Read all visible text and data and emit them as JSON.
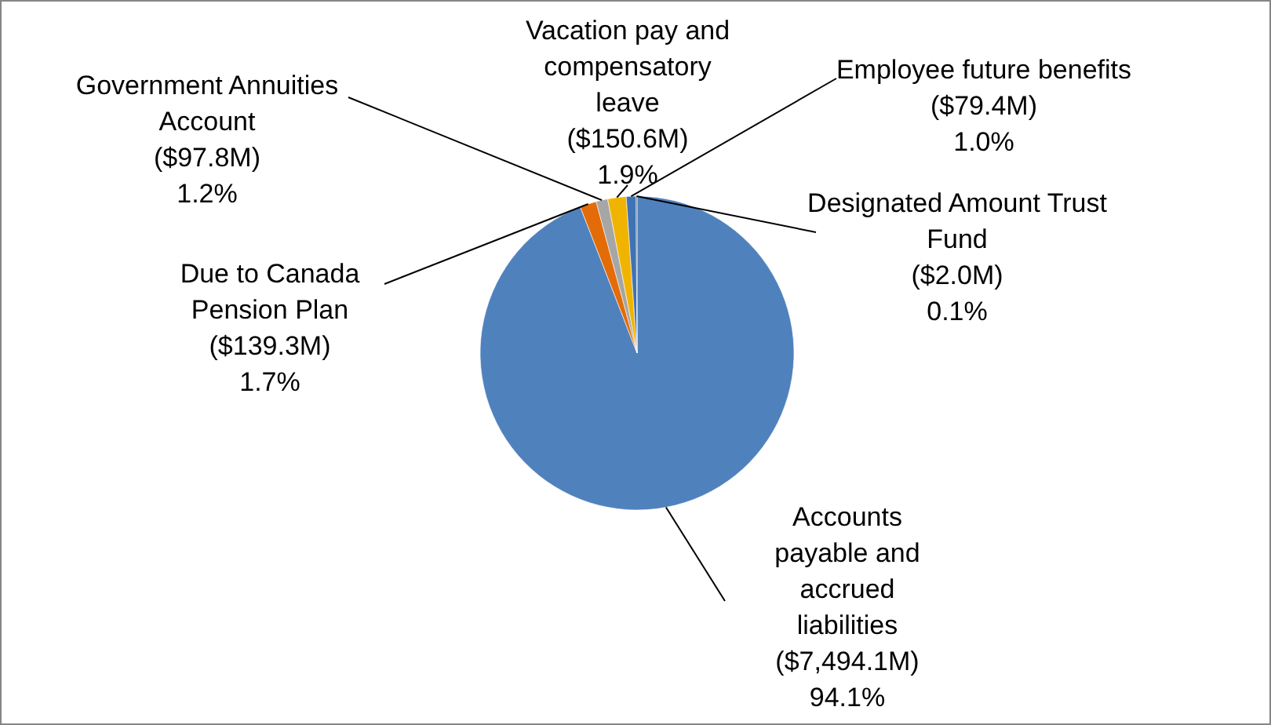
{
  "chart_data": {
    "type": "pie",
    "categories": [
      "Accounts payable and accrued liabilities",
      "Due to Canada Pension Plan",
      "Government Annuities Account",
      "Vacation pay and compensatory leave",
      "Employee future benefits",
      "Designated Amount Trust Fund"
    ],
    "values": [
      94.1,
      1.7,
      1.2,
      1.9,
      1.0,
      0.1
    ],
    "value_labels": [
      "($7,494.1M) 94.1%",
      "($139.3M) 1.7%",
      "($97.8M) 1.2%",
      "($150.6M) 1.9%",
      "($79.4M) 1.0%",
      "($2.0M) 0.1%"
    ],
    "colors": [
      "#4f81bd",
      "#e36c09",
      "#a6a6a6",
      "#f0b400",
      "#3f73b4",
      "#2c4d75"
    ]
  }
}
